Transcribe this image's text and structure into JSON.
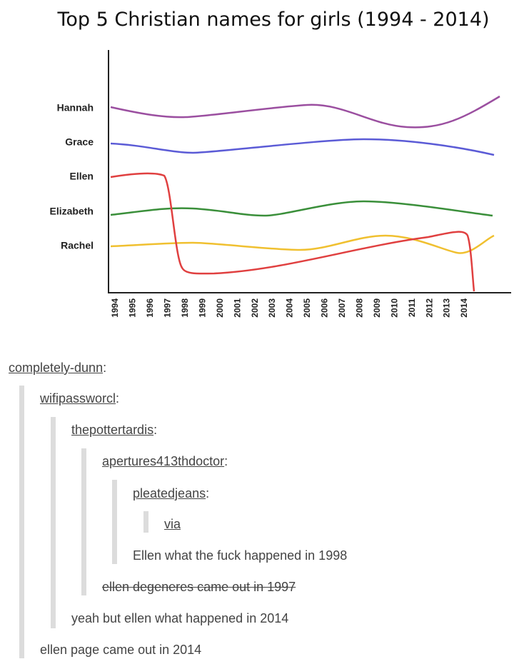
{
  "chart": {
    "title": "Top 5 Christian names for girls (1994 - 2014)",
    "names": [
      "Hannah",
      "Grace",
      "Ellen",
      "Elizabeth",
      "Rachel"
    ],
    "years": [
      "1994",
      "1995",
      "1996",
      "1997",
      "1998",
      "1999",
      "2000",
      "2001",
      "2002",
      "2003",
      "2004",
      "2005",
      "2006",
      "2007",
      "2008",
      "2009",
      "2010",
      "2011",
      "2012",
      "2013",
      "2014"
    ]
  },
  "thread": [
    {
      "user": "completely-dunn",
      "punct": ":"
    },
    {
      "user": "wifipassworcl",
      "punct": ":"
    },
    {
      "user": "thepottertardis",
      "punct": ":"
    },
    {
      "user": "apertures413thdoctor",
      "punct": ":"
    },
    {
      "user": "pleatedjeans",
      "punct": ":"
    },
    {
      "link": "via"
    },
    {
      "text": "Ellen what the fuck happened in 1998"
    },
    {
      "text": "ellen degeneres came out in 1997"
    },
    {
      "text": "yeah but ellen what happened in 2014"
    },
    {
      "text": "ellen page came out in 2014"
    }
  ]
}
